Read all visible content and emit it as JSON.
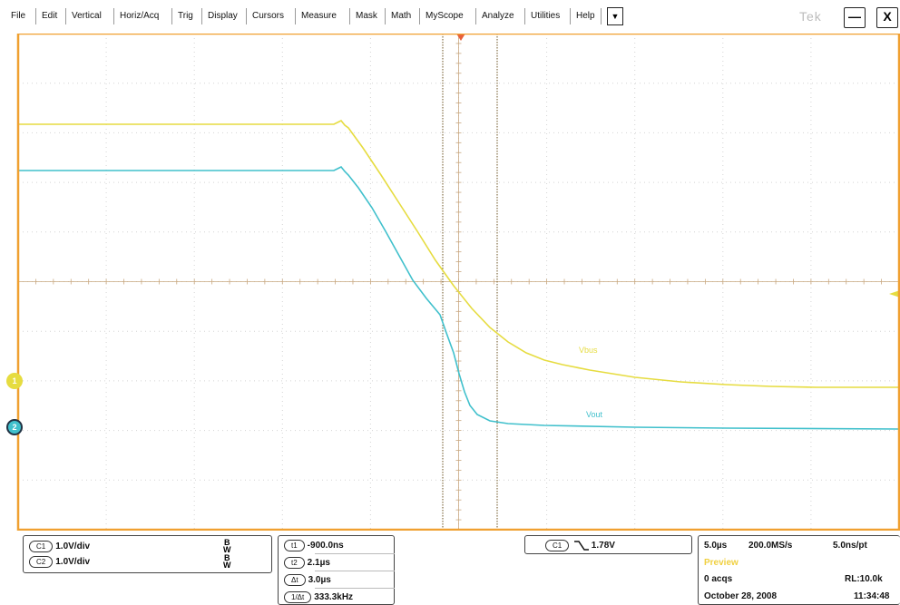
{
  "menu": {
    "items": [
      "File",
      "Edit",
      "Vertical",
      "Horiz/Acq",
      "Trig",
      "Display",
      "Cursors",
      "Measure",
      "Mask",
      "Math",
      "MyScope",
      "Analyze",
      "Utilities",
      "Help"
    ],
    "dropdown_icon": "▼",
    "brand": "Tek",
    "minimize_label": "—",
    "close_label": "X"
  },
  "colors": {
    "frame": "#f0a030",
    "ch1": "#e6dc40",
    "ch2": "#40c0cc",
    "grid": "#c8c8c8",
    "cursor": "#8a6a2a"
  },
  "waveform": {
    "ch1_label": "Vbus",
    "ch2_label": "Vout",
    "ch1_marker": "1",
    "ch2_marker": "2"
  },
  "channels": {
    "c1_tag": "C1",
    "c1_scale": "1.0V/div",
    "c2_tag": "C2",
    "c2_scale": "1.0V/div",
    "bw_top": "B",
    "bw_bottom": "W"
  },
  "cursors": {
    "t1_tag": "t1",
    "t1_value": "-900.0ns",
    "t2_tag": "t2",
    "t2_value": "2.1µs",
    "dt_tag": "Δt",
    "dt_value": "3.0µs",
    "inv_tag": "1/Δt",
    "inv_value": "333.3kHz"
  },
  "trigger": {
    "source_tag": "C1",
    "slope_icon": "falling-edge-icon",
    "level": "1.78V"
  },
  "timebase": {
    "scale": "5.0µs",
    "sample_rate": "200.0MS/s",
    "resolution": "5.0ns/pt",
    "mode": "Preview",
    "acqs": "0 acqs",
    "record_length": "RL:10.0k",
    "date": "October 28, 2008",
    "time": "11:34:48"
  }
}
